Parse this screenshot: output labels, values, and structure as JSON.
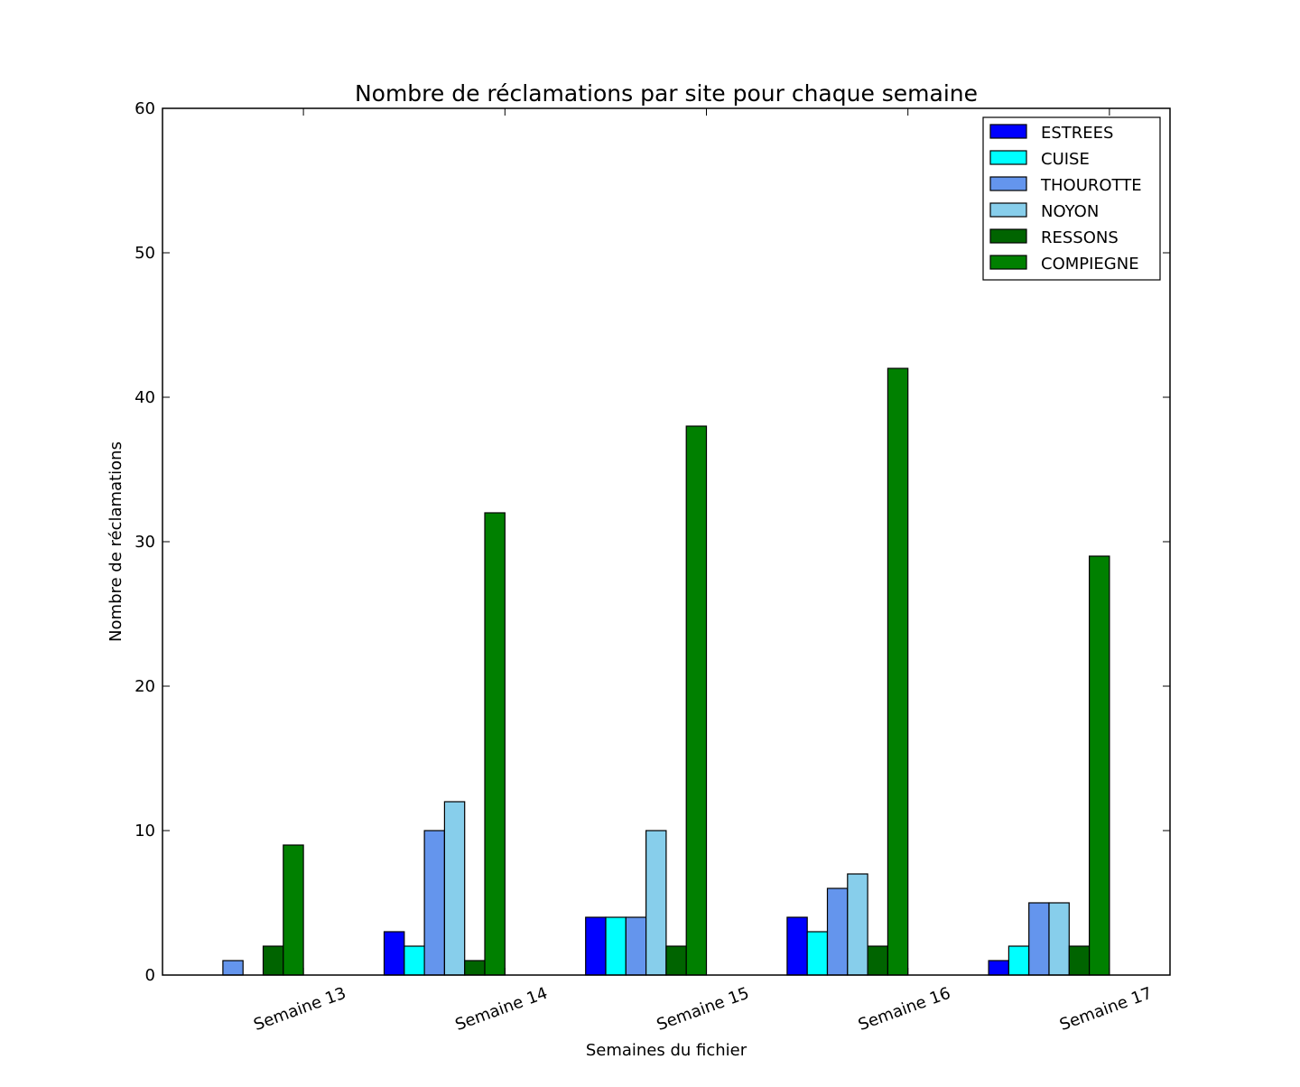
{
  "chart_data": {
    "type": "bar",
    "title": "Nombre de réclamations par site pour chaque semaine",
    "xlabel": "Semaines du fichier",
    "ylabel": "Nombre de réclamations",
    "ylim": [
      0,
      60
    ],
    "yticks": [
      "0",
      "10",
      "20",
      "30",
      "40",
      "50",
      "60"
    ],
    "categories": [
      "Semaine 13",
      "Semaine 14",
      "Semaine 15",
      "Semaine 16",
      "Semaine 17"
    ],
    "series": [
      {
        "name": "ESTREES",
        "color": "#0000ff",
        "values": [
          0,
          3,
          4,
          4,
          1
        ]
      },
      {
        "name": "CUISE",
        "color": "#00ffff",
        "values": [
          0,
          2,
          4,
          3,
          2
        ]
      },
      {
        "name": "THOUROTTE",
        "color": "#6495ed",
        "values": [
          1,
          10,
          4,
          6,
          5
        ]
      },
      {
        "name": "NOYON",
        "color": "#87ceeb",
        "values": [
          0,
          12,
          10,
          7,
          5
        ]
      },
      {
        "name": "RESSONS",
        "color": "#006400",
        "values": [
          2,
          1,
          2,
          2,
          2
        ]
      },
      {
        "name": "COMPIEGNE",
        "color": "#008000",
        "values": [
          9,
          32,
          38,
          42,
          29
        ]
      }
    ],
    "legend_position": "top-right",
    "grid": false
  }
}
